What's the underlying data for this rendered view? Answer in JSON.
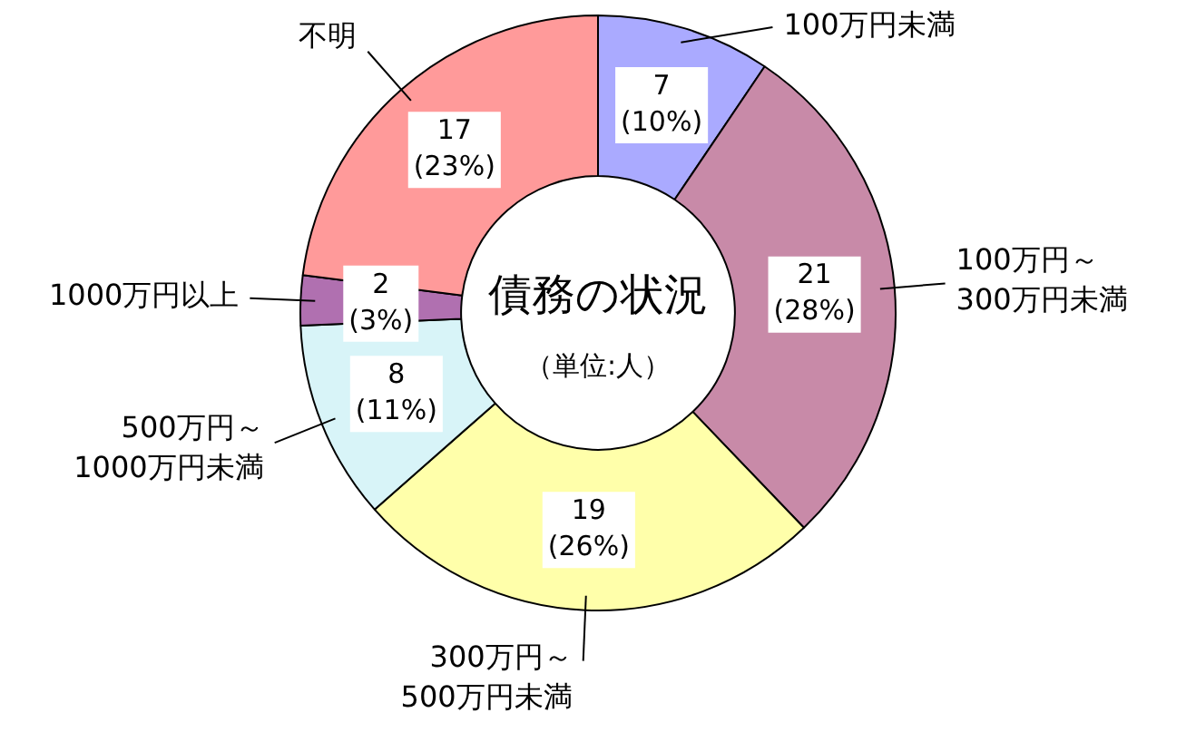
{
  "chart_data": {
    "type": "donut",
    "title": "債務の状況",
    "subtitle": "（単位:人）",
    "categories": [
      "100万円未満",
      "100万円～\n300万円未満",
      "300万円～\n500万円未満",
      "500万円～\n1000万円未満",
      "1000万円以上",
      "不明"
    ],
    "values": [
      7,
      21,
      19,
      8,
      2,
      17
    ],
    "value_labels": [
      "7\n(10%)",
      "21\n(28%)",
      "19\n(26%)",
      "8\n(11%)",
      "2\n(3%)",
      "17\n(23%)"
    ],
    "colors": [
      "#aaaaff",
      "#c88aa8",
      "#ffffaa",
      "#d8f4f8",
      "#b070b0",
      "#ff9a9a"
    ]
  }
}
